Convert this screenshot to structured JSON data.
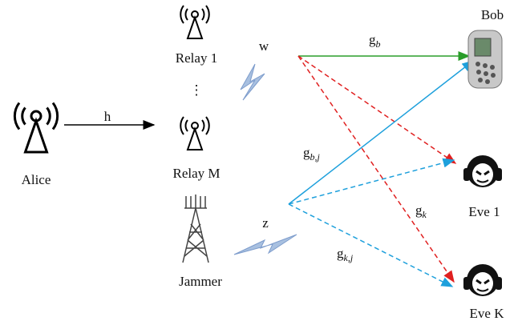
{
  "nodes": {
    "alice": {
      "label": "Alice"
    },
    "relay_1": {
      "label": "Relay 1"
    },
    "relay_dots": {
      "label": "⋮"
    },
    "relay_m": {
      "label": "Relay M"
    },
    "jammer": {
      "label": "Jammer"
    },
    "bob": {
      "label": "Bob"
    },
    "eve_1": {
      "label": "Eve 1"
    },
    "eve_k": {
      "label": "Eve K"
    }
  },
  "edges": {
    "h": {
      "label": "h"
    },
    "w": {
      "label": "w"
    },
    "z": {
      "label": "z"
    },
    "g_b": {
      "base": "g",
      "sub": "b"
    },
    "g_bj": {
      "base": "g",
      "sub": "b,j"
    },
    "g_k": {
      "base": "g",
      "sub": "k"
    },
    "g_kj": {
      "base": "g",
      "sub": "k,j"
    }
  }
}
